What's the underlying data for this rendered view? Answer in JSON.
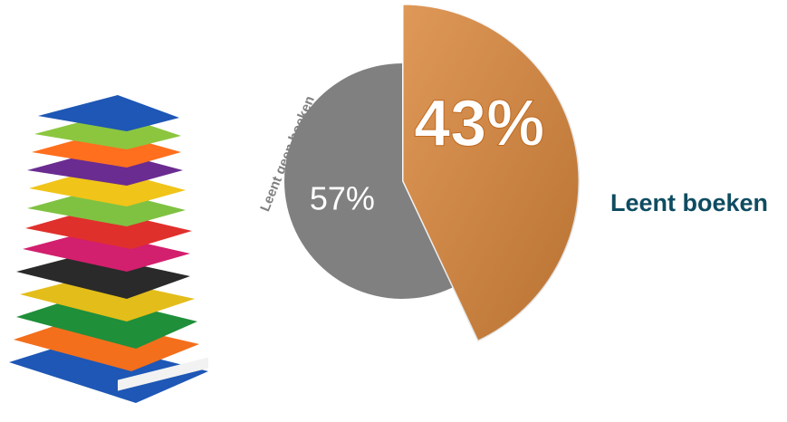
{
  "chart_data": {
    "type": "pie",
    "categories": [
      "Leent boeken",
      "Leent geen boeken"
    ],
    "values": [
      43,
      57
    ],
    "value_labels": [
      "43%",
      "57%"
    ],
    "colors": [
      "#d9863a",
      "#808080"
    ]
  }
}
